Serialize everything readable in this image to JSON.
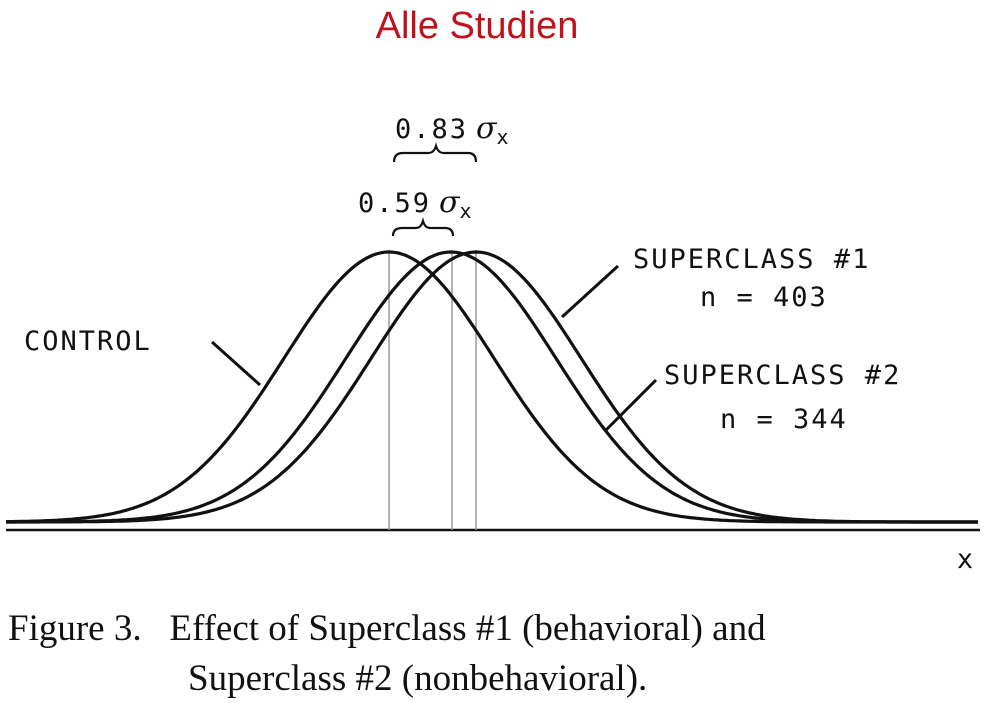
{
  "header": {
    "title": "Alle Studien"
  },
  "annotations": {
    "diff1_value": "0.83",
    "diff2_value": "0.59",
    "sigma_symbol": "σ",
    "sigma_subscript": "x"
  },
  "curves": {
    "control_label": "CONTROL",
    "superclass1_label": "SUPERCLASS #1",
    "superclass1_n": "n = 403",
    "superclass2_label": "SUPERCLASS #2",
    "superclass2_n": "n = 344"
  },
  "axis": {
    "x_label": "x"
  },
  "caption": {
    "line1": "Figure 3.   Effect of Superclass #1 (behavioral) and",
    "line2": "Superclass #2 (nonbehavioral)."
  },
  "chart_data": {
    "type": "line",
    "title": "Effect of Superclass #1 (behavioral) and Superclass #2 (nonbehavioral)",
    "xlabel": "x",
    "units": "standard deviations of x (σx), relative to the control mean",
    "series": [
      {
        "name": "CONTROL",
        "mean": 0,
        "sd": 1
      },
      {
        "name": "SUPERCLASS #2",
        "n": 344,
        "mean": 0.59,
        "sd": 1
      },
      {
        "name": "SUPERCLASS #1",
        "n": 403,
        "mean": 0.83,
        "sd": 1
      }
    ],
    "mean_differences": [
      {
        "from": "CONTROL",
        "to": "SUPERCLASS #2",
        "value": 0.59,
        "unit": "σx"
      },
      {
        "from": "CONTROL",
        "to": "SUPERCLASS #1",
        "value": 0.83,
        "unit": "σx"
      }
    ]
  }
}
